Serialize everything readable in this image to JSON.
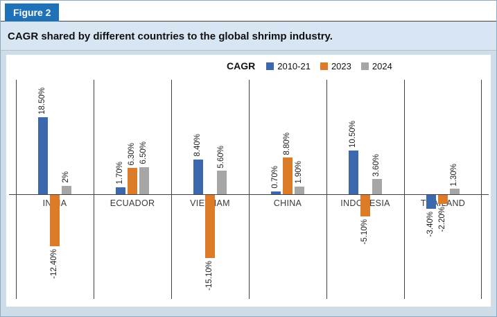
{
  "figure_label": "Figure 2",
  "title": "CAGR shared by different countries to the global shrimp industry.",
  "legend": {
    "title": "CAGR"
  },
  "colors": {
    "series": [
      "#3c68ae",
      "#dc7b28",
      "#a6a6a6"
    ],
    "header_bg": "#2072b8",
    "title_band_bg": "#d8e6f3",
    "page_bg": "#cfdde9",
    "axis_line": "#3f3f3f"
  },
  "chart_data": {
    "type": "bar",
    "title": "CAGR shared by different countries to the global shrimp industry.",
    "categories": [
      "INDIA",
      "ECUADOR",
      "VIETNAM",
      "CHINA",
      "INDONESIA",
      "THAILAND"
    ],
    "series": [
      {
        "name": "2010-21",
        "values": [
          18.5,
          1.7,
          8.4,
          0.7,
          10.5,
          -3.4
        ],
        "labels": [
          "18.50%",
          "1.70%",
          "8.40%",
          "0.70%",
          "10.50%",
          "-3.40%"
        ]
      },
      {
        "name": "2023",
        "values": [
          -12.4,
          6.3,
          -15.1,
          8.8,
          -5.1,
          -2.2
        ],
        "labels": [
          "-12.40%",
          "6.30%",
          "-15.10%",
          "8.80%",
          "-5.10%",
          "-2.20%"
        ]
      },
      {
        "name": "2024",
        "values": [
          2,
          6.5,
          5.6,
          1.9,
          3.6,
          1.3
        ],
        "labels": [
          "2%",
          "6.50%",
          "5.60%",
          "1.90%",
          "3.60%",
          "1.30%"
        ]
      }
    ],
    "ylim": [
      -17,
      20
    ],
    "legend_position": "top",
    "value_labels": "rotated-90-outside-end",
    "gridlines": "vertical-category-separators"
  }
}
